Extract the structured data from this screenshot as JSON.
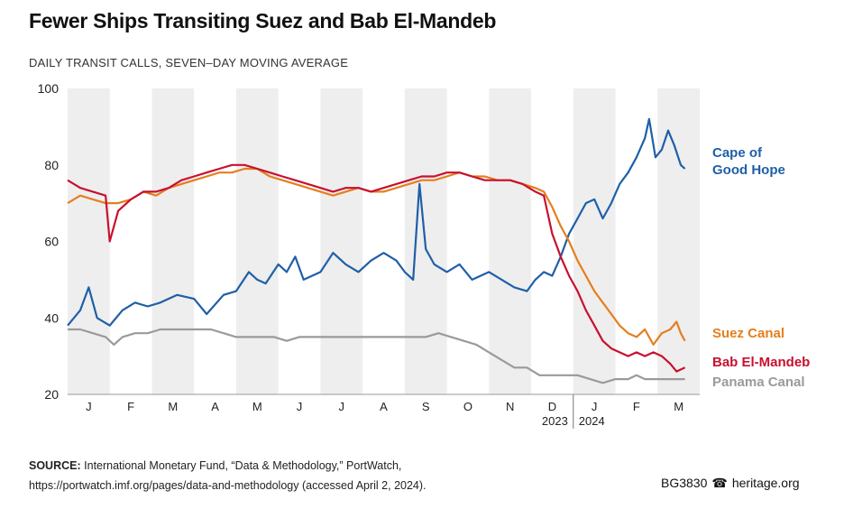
{
  "title": "Fewer Ships Transiting Suez and Bab El-Mandeb",
  "subtitle": "DAILY TRANSIT CALLS, SEVEN–DAY MOVING AVERAGE",
  "source": {
    "label": "SOURCE:",
    "line1": "International Monetary Fund, “Data & Methodology,” PortWatch,",
    "line2": "https://portwatch.imf.org/pages/data-and-methodology (accessed April 2, 2024)."
  },
  "credit": {
    "code": "BG3830",
    "icon": "phone-icon",
    "site": "heritage.org"
  },
  "chart_data": {
    "type": "line",
    "x_unit": "months (Jan 2023 – Mar 2024)",
    "x_ticks": [
      "J",
      "F",
      "M",
      "A",
      "M",
      "J",
      "J",
      "A",
      "S",
      "O",
      "N",
      "D",
      "J",
      "F",
      "M"
    ],
    "year_labels": [
      "2023",
      "2024"
    ],
    "ylim": [
      20,
      100
    ],
    "yticks": [
      20,
      40,
      60,
      80,
      100
    ],
    "grid": "alternating month bands",
    "series": [
      {
        "name": "Cape of\nGood Hope",
        "color": "#1f5fa8",
        "points": [
          [
            0,
            38
          ],
          [
            0.3,
            42
          ],
          [
            0.5,
            48
          ],
          [
            0.7,
            40
          ],
          [
            1,
            38
          ],
          [
            1.3,
            42
          ],
          [
            1.6,
            44
          ],
          [
            1.9,
            43
          ],
          [
            2.2,
            44
          ],
          [
            2.6,
            46
          ],
          [
            3,
            45
          ],
          [
            3.3,
            41
          ],
          [
            3.7,
            46
          ],
          [
            4,
            47
          ],
          [
            4.3,
            52
          ],
          [
            4.5,
            50
          ],
          [
            4.7,
            49
          ],
          [
            5,
            54
          ],
          [
            5.2,
            52
          ],
          [
            5.4,
            56
          ],
          [
            5.6,
            50
          ],
          [
            5.8,
            51
          ],
          [
            6,
            52
          ],
          [
            6.3,
            57
          ],
          [
            6.6,
            54
          ],
          [
            6.9,
            52
          ],
          [
            7.2,
            55
          ],
          [
            7.5,
            57
          ],
          [
            7.8,
            55
          ],
          [
            8,
            52
          ],
          [
            8.2,
            50
          ],
          [
            8.35,
            75
          ],
          [
            8.5,
            58
          ],
          [
            8.7,
            54
          ],
          [
            9,
            52
          ],
          [
            9.3,
            54
          ],
          [
            9.6,
            50
          ],
          [
            10,
            52
          ],
          [
            10.3,
            50
          ],
          [
            10.6,
            48
          ],
          [
            10.9,
            47
          ],
          [
            11.1,
            50
          ],
          [
            11.3,
            52
          ],
          [
            11.5,
            51
          ],
          [
            11.7,
            56
          ],
          [
            11.9,
            62
          ],
          [
            12.1,
            66
          ],
          [
            12.3,
            70
          ],
          [
            12.5,
            71
          ],
          [
            12.7,
            66
          ],
          [
            12.9,
            70
          ],
          [
            13.1,
            75
          ],
          [
            13.3,
            78
          ],
          [
            13.5,
            82
          ],
          [
            13.7,
            87
          ],
          [
            13.8,
            92
          ],
          [
            13.95,
            82
          ],
          [
            14.1,
            84
          ],
          [
            14.25,
            89
          ],
          [
            14.4,
            85
          ],
          [
            14.55,
            80
          ],
          [
            14.65,
            79
          ]
        ]
      },
      {
        "name": "Suez Canal",
        "color": "#e67e1e",
        "points": [
          [
            0,
            70
          ],
          [
            0.3,
            72
          ],
          [
            0.6,
            71
          ],
          [
            0.9,
            70
          ],
          [
            1.2,
            70
          ],
          [
            1.5,
            71
          ],
          [
            1.8,
            73
          ],
          [
            2.1,
            72
          ],
          [
            2.4,
            74
          ],
          [
            2.7,
            75
          ],
          [
            3,
            76
          ],
          [
            3.3,
            77
          ],
          [
            3.6,
            78
          ],
          [
            3.9,
            78
          ],
          [
            4.2,
            79
          ],
          [
            4.5,
            79
          ],
          [
            4.8,
            77
          ],
          [
            5.1,
            76
          ],
          [
            5.4,
            75
          ],
          [
            5.7,
            74
          ],
          [
            6,
            73
          ],
          [
            6.3,
            72
          ],
          [
            6.6,
            73
          ],
          [
            6.9,
            74
          ],
          [
            7.2,
            73
          ],
          [
            7.5,
            73
          ],
          [
            7.8,
            74
          ],
          [
            8.1,
            75
          ],
          [
            8.4,
            76
          ],
          [
            8.7,
            76
          ],
          [
            9,
            77
          ],
          [
            9.3,
            78
          ],
          [
            9.6,
            77
          ],
          [
            9.9,
            77
          ],
          [
            10.2,
            76
          ],
          [
            10.5,
            76
          ],
          [
            10.8,
            75
          ],
          [
            11.1,
            74
          ],
          [
            11.3,
            73
          ],
          [
            11.5,
            69
          ],
          [
            11.7,
            64
          ],
          [
            11.9,
            60
          ],
          [
            12.1,
            55
          ],
          [
            12.3,
            51
          ],
          [
            12.5,
            47
          ],
          [
            12.7,
            44
          ],
          [
            12.9,
            41
          ],
          [
            13.1,
            38
          ],
          [
            13.3,
            36
          ],
          [
            13.5,
            35
          ],
          [
            13.7,
            37
          ],
          [
            13.9,
            33
          ],
          [
            14.1,
            36
          ],
          [
            14.3,
            37
          ],
          [
            14.45,
            39
          ],
          [
            14.55,
            36
          ],
          [
            14.65,
            34
          ]
        ]
      },
      {
        "name": "Bab El-Mandeb",
        "color": "#c8102e",
        "points": [
          [
            0,
            76
          ],
          [
            0.3,
            74
          ],
          [
            0.6,
            73
          ],
          [
            0.9,
            72
          ],
          [
            1,
            60
          ],
          [
            1.2,
            68
          ],
          [
            1.5,
            71
          ],
          [
            1.8,
            73
          ],
          [
            2.1,
            73
          ],
          [
            2.4,
            74
          ],
          [
            2.7,
            76
          ],
          [
            3,
            77
          ],
          [
            3.3,
            78
          ],
          [
            3.6,
            79
          ],
          [
            3.9,
            80
          ],
          [
            4.2,
            80
          ],
          [
            4.5,
            79
          ],
          [
            4.8,
            78
          ],
          [
            5.1,
            77
          ],
          [
            5.4,
            76
          ],
          [
            5.7,
            75
          ],
          [
            6,
            74
          ],
          [
            6.3,
            73
          ],
          [
            6.6,
            74
          ],
          [
            6.9,
            74
          ],
          [
            7.2,
            73
          ],
          [
            7.5,
            74
          ],
          [
            7.8,
            75
          ],
          [
            8.1,
            76
          ],
          [
            8.4,
            77
          ],
          [
            8.7,
            77
          ],
          [
            9,
            78
          ],
          [
            9.3,
            78
          ],
          [
            9.6,
            77
          ],
          [
            9.9,
            76
          ],
          [
            10.2,
            76
          ],
          [
            10.5,
            76
          ],
          [
            10.8,
            75
          ],
          [
            11.1,
            73
          ],
          [
            11.3,
            72
          ],
          [
            11.5,
            62
          ],
          [
            11.7,
            56
          ],
          [
            11.9,
            51
          ],
          [
            12.1,
            47
          ],
          [
            12.3,
            42
          ],
          [
            12.5,
            38
          ],
          [
            12.7,
            34
          ],
          [
            12.9,
            32
          ],
          [
            13.1,
            31
          ],
          [
            13.3,
            30
          ],
          [
            13.5,
            31
          ],
          [
            13.7,
            30
          ],
          [
            13.9,
            31
          ],
          [
            14.1,
            30
          ],
          [
            14.3,
            28
          ],
          [
            14.45,
            26
          ],
          [
            14.65,
            27
          ]
        ]
      },
      {
        "name": "Panama Canal",
        "color": "#9a9a9a",
        "points": [
          [
            0,
            37
          ],
          [
            0.3,
            37
          ],
          [
            0.6,
            36
          ],
          [
            0.9,
            35
          ],
          [
            1.1,
            33
          ],
          [
            1.3,
            35
          ],
          [
            1.6,
            36
          ],
          [
            1.9,
            36
          ],
          [
            2.2,
            37
          ],
          [
            2.5,
            37
          ],
          [
            2.8,
            37
          ],
          [
            3.1,
            37
          ],
          [
            3.4,
            37
          ],
          [
            3.7,
            36
          ],
          [
            4,
            35
          ],
          [
            4.3,
            35
          ],
          [
            4.6,
            35
          ],
          [
            4.9,
            35
          ],
          [
            5.2,
            34
          ],
          [
            5.5,
            35
          ],
          [
            5.8,
            35
          ],
          [
            6.1,
            35
          ],
          [
            6.4,
            35
          ],
          [
            6.7,
            35
          ],
          [
            7,
            35
          ],
          [
            7.3,
            35
          ],
          [
            7.6,
            35
          ],
          [
            7.9,
            35
          ],
          [
            8.2,
            35
          ],
          [
            8.5,
            35
          ],
          [
            8.8,
            36
          ],
          [
            9.1,
            35
          ],
          [
            9.4,
            34
          ],
          [
            9.7,
            33
          ],
          [
            10,
            31
          ],
          [
            10.3,
            29
          ],
          [
            10.6,
            27
          ],
          [
            10.9,
            27
          ],
          [
            11.2,
            25
          ],
          [
            11.5,
            25
          ],
          [
            11.8,
            25
          ],
          [
            12.1,
            25
          ],
          [
            12.4,
            24
          ],
          [
            12.7,
            23
          ],
          [
            13,
            24
          ],
          [
            13.3,
            24
          ],
          [
            13.5,
            25
          ],
          [
            13.7,
            24
          ],
          [
            14,
            24
          ],
          [
            14.3,
            24
          ],
          [
            14.5,
            24
          ],
          [
            14.65,
            24
          ]
        ]
      }
    ]
  }
}
